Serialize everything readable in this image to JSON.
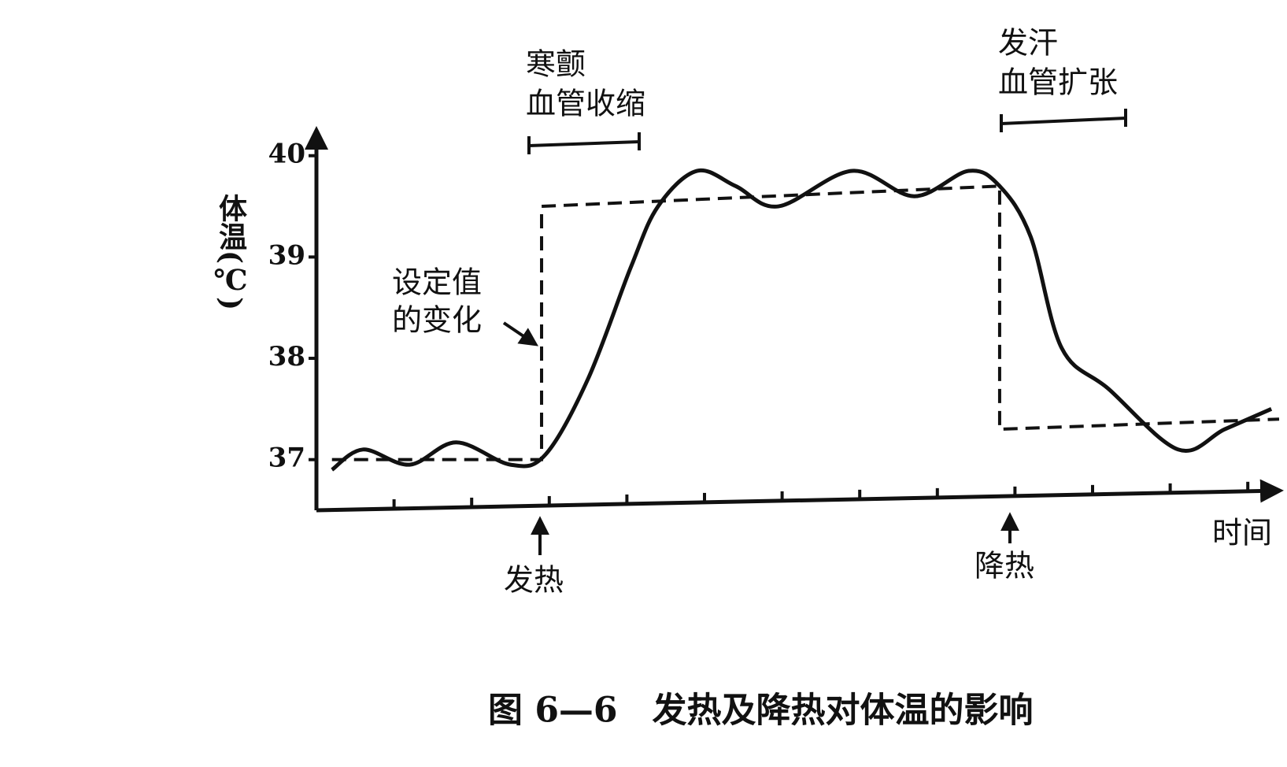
{
  "chart_data": {
    "type": "line",
    "title": "图 6—6　发热及降热对体温的影响",
    "y_label": "体温(℃)",
    "x_label": "时间",
    "ylim": [
      36.5,
      40.2
    ],
    "yticks": [
      37,
      38,
      39,
      40
    ],
    "xlim": [
      0,
      12.4
    ],
    "series": [
      {
        "color": "#111111",
        "dash": false,
        "x": [
          0.2,
          0.6,
          1.2,
          1.8,
          2.5,
          2.95,
          3.5,
          4.05,
          4.4,
          4.9,
          5.4,
          5.95,
          6.9,
          7.7,
          8.4,
          8.8,
          9.2,
          9.6,
          10.2,
          11.1,
          11.7,
          12.3
        ],
        "values": [
          36.9,
          37.1,
          36.95,
          37.17,
          36.95,
          37.05,
          37.8,
          38.9,
          39.5,
          39.85,
          39.7,
          39.5,
          39.85,
          39.6,
          39.85,
          39.7,
          39.2,
          38.1,
          37.7,
          37.1,
          37.3,
          37.5
        ]
      },
      {
        "color": "#111111",
        "dash": true,
        "x": [
          0.2,
          2.9,
          2.9,
          8.8,
          8.8,
          12.4
        ],
        "values": [
          37.0,
          37.0,
          39.5,
          39.7,
          37.3,
          37.4
        ]
      }
    ],
    "annotations": [
      "寒颤",
      "血管收缩",
      "发汗",
      "血管扩张",
      "设定值",
      "的变化",
      "发热",
      "降热"
    ]
  }
}
